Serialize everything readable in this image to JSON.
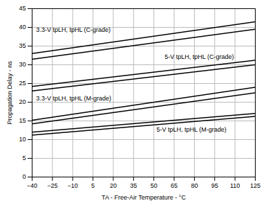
{
  "chart_data": {
    "type": "line",
    "x_label": "TA - Free-Air Temperature - °C",
    "y_label": "Propagation Delay - ns",
    "xlim": [
      -40,
      125
    ],
    "ylim": [
      0,
      45
    ],
    "xticks": [
      -40,
      -25,
      -10,
      5,
      20,
      35,
      50,
      65,
      80,
      95,
      110,
      125
    ],
    "yticks": [
      0,
      5,
      10,
      15,
      20,
      25,
      30,
      35,
      40,
      45
    ],
    "grid": true,
    "x": [
      -40,
      125
    ],
    "series": [
      {
        "color": "#000000",
        "values": [
          33.0,
          41.5
        ]
      },
      {
        "color": "#000000",
        "values": [
          31.5,
          39.5
        ]
      },
      {
        "color": "#000000",
        "values": [
          24.2,
          31.2
        ]
      },
      {
        "color": "#000000",
        "values": [
          23.0,
          30.0
        ]
      },
      {
        "color": "#000000",
        "values": [
          15.2,
          24.0
        ]
      },
      {
        "color": "#000000",
        "values": [
          14.2,
          22.5
        ]
      },
      {
        "color": "#000000",
        "values": [
          12.0,
          17.0
        ]
      },
      {
        "color": "#000000",
        "values": [
          11.2,
          16.2
        ]
      }
    ],
    "annotations": [
      {
        "text": "3.3-V tpLH, tpHL (C-grade)",
        "x": -37,
        "y": 38.8
      },
      {
        "text": "5-V tpLH, tpHL (C-grade)",
        "x": 58,
        "y": 31.5
      },
      {
        "text": "3.3-V tpLH, tpHL (M-grade)",
        "x": -37,
        "y": 20.5
      },
      {
        "text": "5-V tpLH, tpHL (M-grade)",
        "x": 52,
        "y": 12.2
      }
    ]
  }
}
